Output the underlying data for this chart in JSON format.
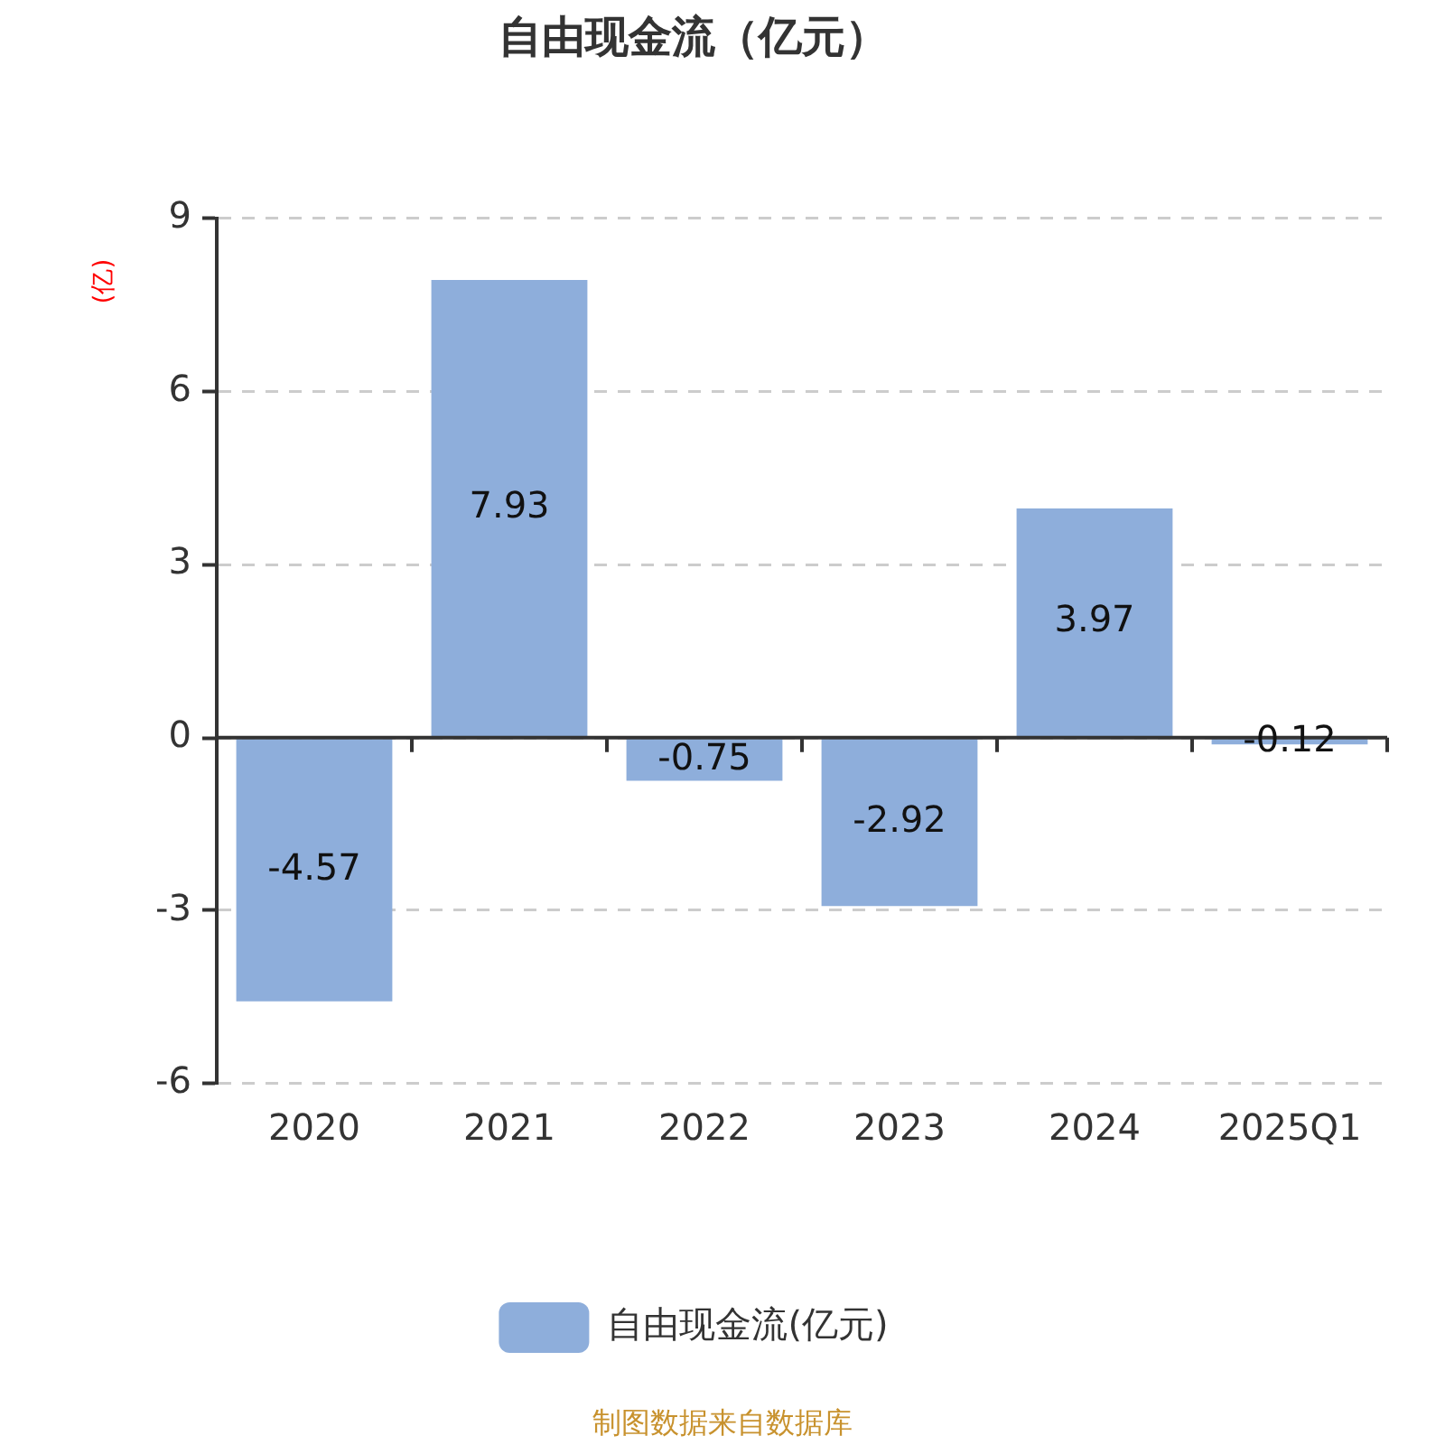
{
  "chart_data": {
    "type": "bar",
    "title": "自由现金流（亿元）",
    "ylabel": "(亿)",
    "categories": [
      "2020",
      "2021",
      "2022",
      "2023",
      "2024",
      "2025Q1"
    ],
    "series": [
      {
        "name": "自由现金流(亿元)",
        "color": "#8eaedb",
        "values": [
          -4.57,
          7.93,
          -0.75,
          -2.92,
          3.97,
          -0.12
        ]
      }
    ],
    "ylim": [
      -6,
      9
    ],
    "yticks": [
      -6,
      -3,
      0,
      3,
      6,
      9
    ],
    "grid": "y",
    "legend": "bottom",
    "data_labels": true,
    "annotations": [
      "制图数据来自数据库"
    ]
  }
}
